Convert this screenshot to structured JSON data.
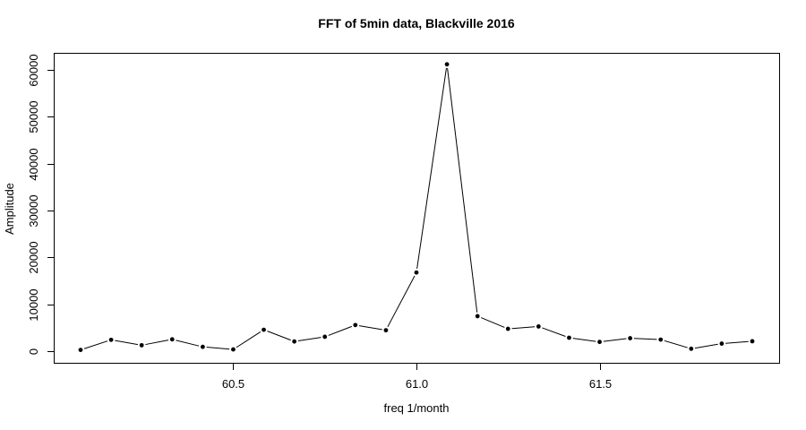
{
  "chart_data": {
    "type": "line",
    "title": "FFT of 5min data, Blackville 2016",
    "xlabel": "freq 1/month",
    "ylabel": "Amplitude",
    "x": [
      60.0833,
      60.1667,
      60.25,
      60.3333,
      60.4167,
      60.5,
      60.5833,
      60.6667,
      60.75,
      60.8333,
      60.9167,
      61.0,
      61.0833,
      61.1667,
      61.25,
      61.3333,
      61.4167,
      61.5,
      61.5833,
      61.6667,
      61.75,
      61.8333,
      61.9167
    ],
    "y": [
      300,
      2450,
      1300,
      2550,
      950,
      400,
      4600,
      2100,
      3100,
      5600,
      4500,
      16800,
      61200,
      7500,
      4800,
      5300,
      2900,
      2000,
      2800,
      2500,
      550,
      1650,
      2150
    ],
    "xticks": [
      60.5,
      61.0,
      61.5
    ],
    "xtick_labels": [
      "60.5",
      "61.0",
      "61.5"
    ],
    "yticks": [
      0,
      10000,
      20000,
      30000,
      40000,
      50000,
      60000
    ],
    "ytick_labels": [
      "0",
      "10000",
      "20000",
      "30000",
      "40000",
      "50000",
      "60000"
    ],
    "xlim": [
      60.01,
      61.99
    ],
    "ylim": [
      -2450,
      63650
    ],
    "grid": false,
    "legend": null,
    "point_marker": "filled-circle",
    "series_color": "#000000",
    "background_color": "#ffffff"
  }
}
